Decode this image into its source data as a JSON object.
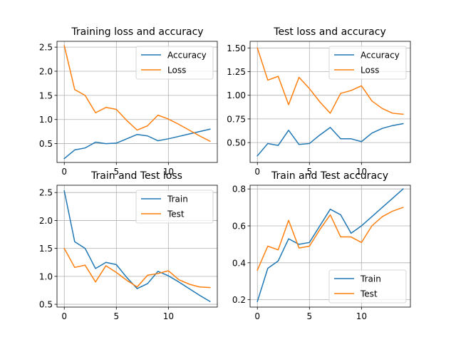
{
  "chart_data": [
    {
      "type": "line",
      "title": "Training loss and accuracy",
      "x": [
        0,
        1,
        2,
        3,
        4,
        5,
        6,
        7,
        8,
        9,
        10,
        11,
        12,
        13,
        14
      ],
      "xticks": [
        0,
        5,
        10
      ],
      "yticks": [
        0.5,
        1.0,
        1.5,
        2.0,
        2.5
      ],
      "ytick_labels": [
        "0.5",
        "1.0",
        "1.5",
        "2.0",
        "2.5"
      ],
      "ylim": [
        0.11,
        2.62
      ],
      "grid": true,
      "legend": "top-right",
      "series": [
        {
          "name": "Accuracy",
          "color": "#1f77b4",
          "values": [
            0.19,
            0.37,
            0.41,
            0.53,
            0.5,
            0.51,
            0.6,
            0.69,
            0.66,
            0.56,
            0.6,
            0.65,
            0.7,
            0.75,
            0.8
          ]
        },
        {
          "name": "Loss",
          "color": "#ff7f0e",
          "values": [
            2.53,
            1.62,
            1.5,
            1.14,
            1.25,
            1.21,
            0.98,
            0.78,
            0.87,
            1.09,
            1.01,
            0.9,
            0.78,
            0.66,
            0.55
          ]
        }
      ]
    },
    {
      "type": "line",
      "title": "Test loss and accuracy",
      "x": [
        0,
        1,
        2,
        3,
        4,
        5,
        6,
        7,
        8,
        9,
        10,
        11,
        12,
        13,
        14
      ],
      "xticks": [
        0,
        5,
        10
      ],
      "yticks": [
        0.5,
        0.75,
        1.0,
        1.25,
        1.5
      ],
      "ytick_labels": [
        "0.50",
        "0.75",
        "1.00",
        "1.25",
        "1.50"
      ],
      "ylim": [
        0.29,
        1.57
      ],
      "grid": true,
      "legend": "top-right",
      "series": [
        {
          "name": "Accuracy",
          "color": "#1f77b4",
          "values": [
            0.36,
            0.49,
            0.47,
            0.63,
            0.48,
            0.49,
            0.58,
            0.66,
            0.54,
            0.54,
            0.51,
            0.6,
            0.65,
            0.68,
            0.7
          ]
        },
        {
          "name": "Loss",
          "color": "#ff7f0e",
          "values": [
            1.5,
            1.16,
            1.2,
            0.9,
            1.19,
            1.07,
            0.93,
            0.81,
            1.02,
            1.05,
            1.1,
            0.94,
            0.86,
            0.81,
            0.8
          ]
        }
      ]
    },
    {
      "type": "line",
      "title": "Train and Test loss",
      "x": [
        0,
        1,
        2,
        3,
        4,
        5,
        6,
        7,
        8,
        9,
        10,
        11,
        12,
        13,
        14
      ],
      "xticks": [
        0,
        5,
        10
      ],
      "yticks": [
        0.5,
        1.0,
        1.5,
        2.0,
        2.5
      ],
      "ytick_labels": [
        "0.5",
        "1.0",
        "1.5",
        "2.0",
        "2.5"
      ],
      "ylim": [
        0.45,
        2.63
      ],
      "grid": true,
      "legend": "top-right",
      "series": [
        {
          "name": "Train",
          "color": "#1f77b4",
          "values": [
            2.53,
            1.62,
            1.5,
            1.14,
            1.25,
            1.21,
            0.98,
            0.78,
            0.87,
            1.09,
            1.01,
            0.9,
            0.78,
            0.66,
            0.55
          ]
        },
        {
          "name": "Test",
          "color": "#ff7f0e",
          "values": [
            1.5,
            1.16,
            1.2,
            0.9,
            1.19,
            1.07,
            0.93,
            0.81,
            1.02,
            1.05,
            1.1,
            0.94,
            0.86,
            0.81,
            0.8
          ]
        }
      ]
    },
    {
      "type": "line",
      "title": "Train and Test accuracy",
      "x": [
        0,
        1,
        2,
        3,
        4,
        5,
        6,
        7,
        8,
        9,
        10,
        11,
        12,
        13,
        14
      ],
      "xticks": [
        0,
        5,
        10
      ],
      "yticks": [
        0.2,
        0.4,
        0.6,
        0.8
      ],
      "ytick_labels": [
        "0.2",
        "0.4",
        "0.6",
        "0.8"
      ],
      "ylim": [
        0.16,
        0.82
      ],
      "grid": true,
      "legend": "bottom-right",
      "series": [
        {
          "name": "Train",
          "color": "#1f77b4",
          "values": [
            0.19,
            0.37,
            0.41,
            0.53,
            0.5,
            0.51,
            0.6,
            0.69,
            0.66,
            0.56,
            0.6,
            0.65,
            0.7,
            0.75,
            0.8
          ]
        },
        {
          "name": "Test",
          "color": "#ff7f0e",
          "values": [
            0.36,
            0.49,
            0.47,
            0.63,
            0.48,
            0.49,
            0.58,
            0.66,
            0.54,
            0.54,
            0.51,
            0.6,
            0.65,
            0.68,
            0.7
          ]
        }
      ]
    }
  ]
}
